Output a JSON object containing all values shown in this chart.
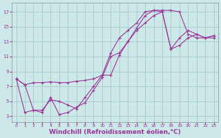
{
  "background_color": "#cce8e8",
  "grid_color": "#aacccc",
  "line_color": "#993399",
  "xlabel": "Windchill (Refroidissement éolien,°C)",
  "xlabel_fontsize": 6.5,
  "yticks": [
    3,
    5,
    7,
    9,
    11,
    13,
    15,
    17
  ],
  "xticks": [
    0,
    1,
    2,
    3,
    4,
    5,
    6,
    7,
    8,
    9,
    10,
    11,
    12,
    13,
    14,
    15,
    16,
    17,
    18,
    19,
    20,
    21,
    22,
    23
  ],
  "xlim": [
    -0.5,
    23.5
  ],
  "ylim": [
    2.2,
    18.2
  ],
  "line1_x": [
    0,
    1,
    2,
    3,
    4,
    5,
    6,
    7,
    8,
    9,
    10,
    11,
    12,
    13,
    14,
    15,
    16,
    17,
    18,
    19,
    20,
    21,
    22,
    23
  ],
  "line1_y": [
    8.0,
    7.2,
    7.5,
    7.5,
    7.6,
    7.5,
    7.5,
    7.7,
    7.8,
    8.0,
    8.5,
    8.5,
    11.2,
    13.0,
    14.8,
    16.5,
    17.2,
    17.2,
    17.2,
    17.0,
    14.0,
    13.5,
    13.5,
    13.8
  ],
  "line2_x": [
    0,
    1,
    2,
    3,
    4,
    5,
    6,
    7,
    8,
    9,
    10,
    11,
    12,
    13,
    14,
    15,
    16,
    17,
    18,
    19,
    20,
    21,
    22,
    23
  ],
  "line2_y": [
    8.0,
    7.2,
    3.8,
    3.8,
    5.2,
    5.0,
    4.5,
    4.0,
    5.5,
    7.0,
    8.5,
    11.5,
    13.5,
    14.5,
    15.5,
    17.0,
    17.2,
    17.0,
    12.0,
    13.5,
    14.5,
    14.0,
    13.5,
    13.8
  ],
  "line3_x": [
    0,
    1,
    2,
    3,
    4,
    5,
    6,
    7,
    8,
    9,
    10,
    11,
    12,
    13,
    14,
    15,
    16,
    17,
    18,
    19,
    20,
    21,
    22,
    23
  ],
  "line3_y": [
    8.0,
    3.5,
    3.8,
    3.5,
    5.5,
    3.2,
    3.5,
    4.2,
    4.8,
    6.5,
    8.2,
    11.0,
    11.5,
    13.0,
    14.5,
    15.5,
    16.5,
    17.0,
    12.0,
    12.5,
    13.5,
    14.0,
    13.5,
    13.5
  ]
}
